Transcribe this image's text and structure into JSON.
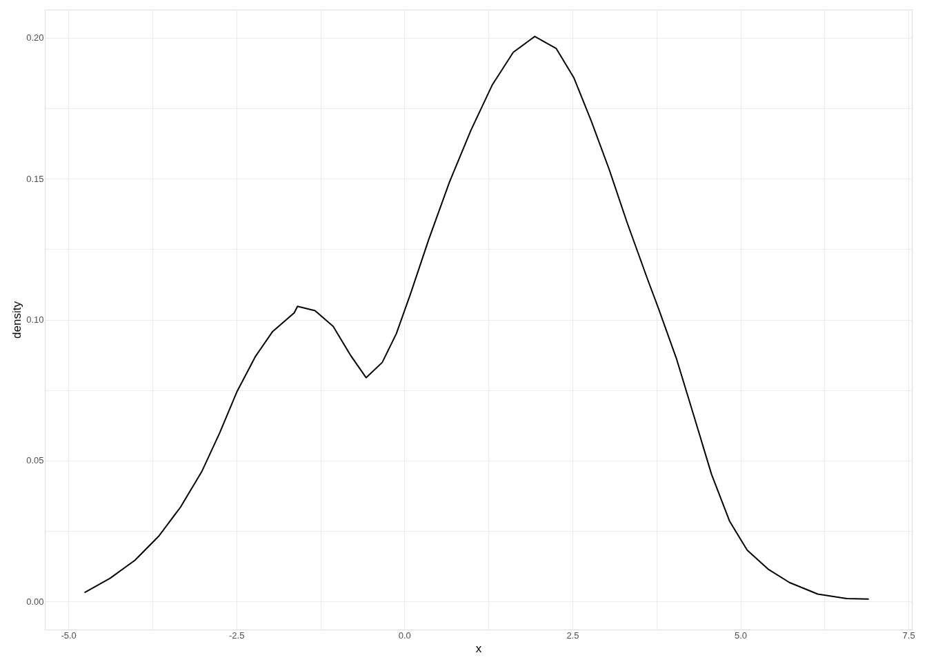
{
  "chart_data": {
    "type": "line",
    "xlabel": "x",
    "ylabel": "density",
    "x": [
      -4.76,
      -4.38,
      -4.01,
      -3.65,
      -3.33,
      -3.01,
      -2.75,
      -2.49,
      -2.22,
      -1.96,
      -1.64,
      -1.59,
      -1.33,
      -1.06,
      -0.8,
      -0.57,
      -0.33,
      -0.12,
      0.09,
      0.36,
      0.67,
      0.99,
      1.31,
      1.62,
      1.94,
      2.26,
      2.52,
      2.78,
      3.05,
      3.31,
      3.62,
      3.78,
      4.05,
      4.31,
      4.57,
      4.84,
      5.1,
      5.42,
      5.73,
      6.15,
      6.58,
      6.91
    ],
    "series": [
      {
        "color": "#000000",
        "values": [
          0.0031,
          0.0082,
          0.0146,
          0.0233,
          0.0335,
          0.0463,
          0.0597,
          0.0745,
          0.0868,
          0.0958,
          0.1024,
          0.1047,
          0.1032,
          0.0976,
          0.0873,
          0.0794,
          0.0848,
          0.095,
          0.1091,
          0.1283,
          0.1488,
          0.1672,
          0.1834,
          0.1949,
          0.2005,
          0.1962,
          0.1859,
          0.1705,
          0.1531,
          0.1347,
          0.1142,
          0.104,
          0.086,
          0.0656,
          0.0451,
          0.0284,
          0.0182,
          0.0113,
          0.0067,
          0.0026,
          0.001,
          0.0008
        ]
      }
    ],
    "xlim": [
      -5.35,
      7.55
    ],
    "ylim": [
      -0.01,
      0.21
    ],
    "xticks": [
      {
        "value": -5,
        "label": "-5.0"
      },
      {
        "value": -3.75,
        "label": null
      },
      {
        "value": -2.5,
        "label": "-2.5"
      },
      {
        "value": -1.25,
        "label": null
      },
      {
        "value": 0,
        "label": "0.0"
      },
      {
        "value": 1.25,
        "label": null
      },
      {
        "value": 2.5,
        "label": "2.5"
      },
      {
        "value": 3.75,
        "label": null
      },
      {
        "value": 5,
        "label": "5.0"
      },
      {
        "value": 6.25,
        "label": null
      },
      {
        "value": 7.5,
        "label": "7.5"
      }
    ],
    "yticks": [
      {
        "value": 0,
        "label": "0.00"
      },
      {
        "value": 0.025,
        "label": null
      },
      {
        "value": 0.05,
        "label": "0.05"
      },
      {
        "value": 0.075,
        "label": null
      },
      {
        "value": 0.1,
        "label": "0.10"
      },
      {
        "value": 0.125,
        "label": null
      },
      {
        "value": 0.15,
        "label": "0.15"
      },
      {
        "value": 0.175,
        "label": null
      },
      {
        "value": 0.2,
        "label": "0.20"
      }
    ],
    "grid": true,
    "marker": "none",
    "line_style": "solid"
  }
}
